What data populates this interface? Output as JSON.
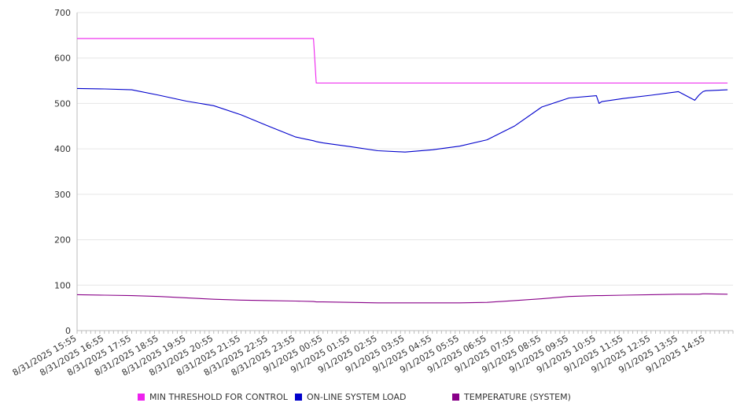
{
  "chart_data": {
    "type": "line",
    "ylim": [
      0,
      700
    ],
    "yticks": [
      0,
      100,
      200,
      300,
      400,
      500,
      600,
      700
    ],
    "grid": true,
    "legend_position": "bottom",
    "x_tick_labels": [
      "8/31/2025 15:55",
      "8/31/2025 16:55",
      "8/31/2025 17:55",
      "8/31/2025 18:55",
      "8/31/2025 19:55",
      "8/31/2025 20:55",
      "8/31/2025 21:55",
      "8/31/2025 22:55",
      "8/31/2025 23:55",
      "9/1/2025 00:55",
      "9/1/2025 01:55",
      "9/1/2025 02:55",
      "9/1/2025 03:55",
      "9/1/2025 04:55",
      "9/1/2025 05:55",
      "9/1/2025 06:55",
      "9/1/2025 07:55",
      "9/1/2025 08:55",
      "9/1/2025 09:55",
      "9/1/2025 10:55",
      "9/1/2025 11:55",
      "9/1/2025 12:55",
      "9/1/2025 13:55",
      "9/1/2025 14:55"
    ],
    "x": [
      0,
      1,
      2,
      3,
      4,
      5,
      6,
      7,
      8,
      8.65,
      8.75,
      9,
      10,
      11,
      12,
      13,
      14,
      15,
      16,
      17,
      18,
      19,
      19.1,
      19.2,
      20,
      21,
      22,
      22.6,
      22.75,
      22.9,
      23,
      23.8
    ],
    "series": [
      {
        "name": "MIN THRESHOLD FOR CONTROL",
        "color": "#ee22ee",
        "values": [
          643,
          643,
          643,
          643,
          643,
          643,
          643,
          643,
          643,
          643,
          545,
          545,
          545,
          545,
          545,
          545,
          545,
          545,
          545,
          545,
          545,
          545,
          545,
          545,
          545,
          545,
          545,
          545,
          545,
          545,
          545,
          545
        ]
      },
      {
        "name": "ON-LINE SYSTEM LOAD",
        "color": "#0000cc",
        "values": [
          533,
          532,
          530,
          518,
          505,
          495,
          475,
          450,
          426,
          418,
          416,
          413,
          405,
          396,
          393,
          398,
          406,
          420,
          450,
          492,
          512,
          517,
          500,
          504,
          511,
          518,
          526,
          507,
          518,
          526,
          528,
          530
        ]
      },
      {
        "name": "TEMPERATURE (SYSTEM)",
        "color": "#880088",
        "values": [
          79,
          78,
          77,
          75,
          72,
          69,
          67,
          66,
          65,
          64,
          63,
          63,
          62,
          61,
          61,
          61,
          61,
          62,
          66,
          70,
          75,
          77,
          77,
          77,
          78,
          79,
          80,
          80,
          80,
          81,
          81,
          80
        ]
      }
    ]
  }
}
